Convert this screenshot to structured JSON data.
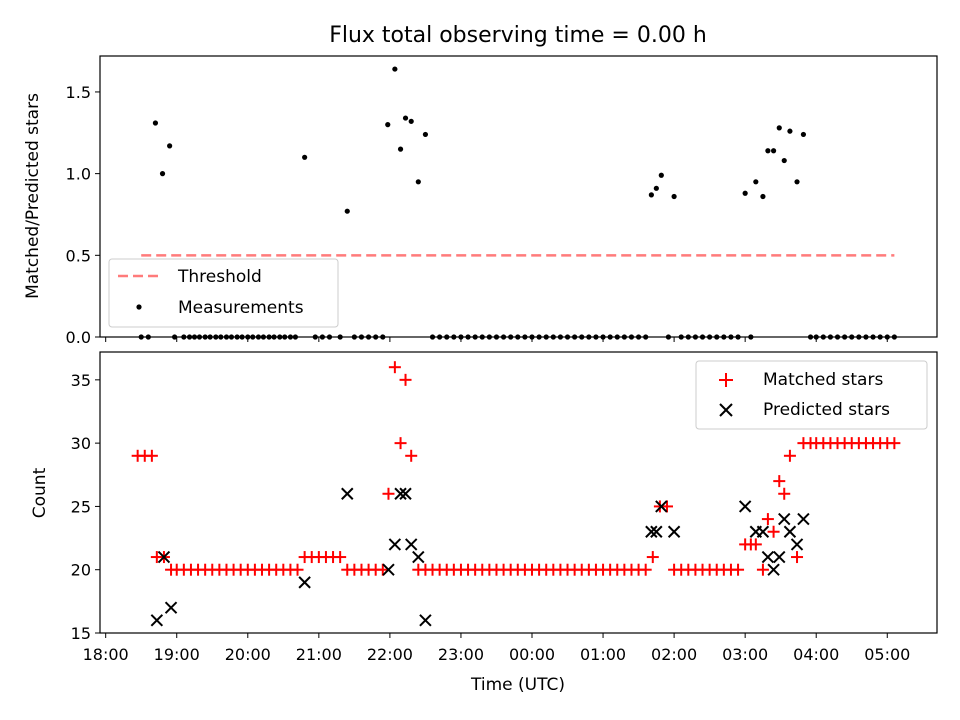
{
  "chart_data": [
    {
      "type": "scatter",
      "title": "Flux total observing time = 0.00 h",
      "xlabel": "",
      "ylabel": "Matched/Predicted stars",
      "xlim": [
        17.92,
        29.7
      ],
      "ylim": [
        0.0,
        1.72
      ],
      "yticks": [
        0.0,
        0.5,
        1.0,
        1.5
      ],
      "yticklabels": [
        "0.0",
        "0.5",
        "1.0",
        "1.5"
      ],
      "legend": "lower-left",
      "threshold": {
        "name": "Threshold",
        "value": 0.5,
        "x_start": 18.5,
        "x_end": 29.1,
        "color": "#ff7b7b"
      },
      "series": [
        {
          "name": "Measurements",
          "color": "#000000",
          "points": [
            [
              18.5,
              0
            ],
            [
              18.6,
              0
            ],
            [
              18.7,
              1.31
            ],
            [
              18.8,
              1.0
            ],
            [
              18.9,
              1.17
            ],
            [
              18.97,
              0
            ],
            [
              19.1,
              0
            ],
            [
              19.18,
              0
            ],
            [
              19.25,
              0
            ],
            [
              19.32,
              0
            ],
            [
              19.4,
              0
            ],
            [
              19.47,
              0
            ],
            [
              19.55,
              0
            ],
            [
              19.62,
              0
            ],
            [
              19.7,
              0
            ],
            [
              19.77,
              0
            ],
            [
              19.85,
              0
            ],
            [
              19.92,
              0
            ],
            [
              20.0,
              0
            ],
            [
              20.07,
              0
            ],
            [
              20.15,
              0
            ],
            [
              20.22,
              0
            ],
            [
              20.3,
              0
            ],
            [
              20.37,
              0
            ],
            [
              20.45,
              0
            ],
            [
              20.52,
              0
            ],
            [
              20.6,
              0
            ],
            [
              20.67,
              0
            ],
            [
              20.8,
              1.1
            ],
            [
              20.95,
              0
            ],
            [
              21.05,
              0
            ],
            [
              21.15,
              0
            ],
            [
              21.3,
              0
            ],
            [
              21.4,
              0.77
            ],
            [
              21.5,
              0
            ],
            [
              21.6,
              0
            ],
            [
              21.7,
              0
            ],
            [
              21.8,
              0
            ],
            [
              21.9,
              0
            ],
            [
              21.97,
              1.3
            ],
            [
              22.07,
              1.64
            ],
            [
              22.15,
              1.15
            ],
            [
              22.22,
              1.34
            ],
            [
              22.3,
              1.32
            ],
            [
              22.4,
              0.95
            ],
            [
              22.5,
              1.24
            ],
            [
              22.6,
              0
            ],
            [
              22.7,
              0
            ],
            [
              22.8,
              0
            ],
            [
              22.9,
              0
            ],
            [
              23.0,
              0
            ],
            [
              23.1,
              0
            ],
            [
              23.2,
              0
            ],
            [
              23.3,
              0
            ],
            [
              23.4,
              0
            ],
            [
              23.5,
              0
            ],
            [
              23.6,
              0
            ],
            [
              23.7,
              0
            ],
            [
              23.8,
              0
            ],
            [
              23.9,
              0
            ],
            [
              24.0,
              0
            ],
            [
              24.1,
              0
            ],
            [
              24.2,
              0
            ],
            [
              24.3,
              0
            ],
            [
              24.4,
              0
            ],
            [
              24.5,
              0
            ],
            [
              24.6,
              0
            ],
            [
              24.7,
              0
            ],
            [
              24.8,
              0
            ],
            [
              24.9,
              0
            ],
            [
              25.0,
              0
            ],
            [
              25.1,
              0
            ],
            [
              25.2,
              0
            ],
            [
              25.3,
              0
            ],
            [
              25.4,
              0
            ],
            [
              25.5,
              0
            ],
            [
              25.6,
              0
            ],
            [
              25.68,
              0.87
            ],
            [
              25.75,
              0.91
            ],
            [
              25.82,
              0.99
            ],
            [
              25.92,
              0
            ],
            [
              26.0,
              0.86
            ],
            [
              26.1,
              0
            ],
            [
              26.2,
              0
            ],
            [
              26.3,
              0
            ],
            [
              26.4,
              0
            ],
            [
              26.5,
              0
            ],
            [
              26.6,
              0
            ],
            [
              26.7,
              0
            ],
            [
              26.8,
              0
            ],
            [
              26.9,
              0
            ],
            [
              27.0,
              0.88
            ],
            [
              27.08,
              0
            ],
            [
              27.15,
              0.95
            ],
            [
              27.25,
              0.86
            ],
            [
              27.32,
              1.14
            ],
            [
              27.4,
              1.14
            ],
            [
              27.48,
              1.28
            ],
            [
              27.55,
              1.08
            ],
            [
              27.63,
              1.26
            ],
            [
              27.73,
              0.95
            ],
            [
              27.82,
              1.24
            ],
            [
              27.92,
              0
            ],
            [
              28.0,
              0
            ],
            [
              28.1,
              0
            ],
            [
              28.2,
              0
            ],
            [
              28.3,
              0
            ],
            [
              28.4,
              0
            ],
            [
              28.5,
              0
            ],
            [
              28.6,
              0
            ],
            [
              28.7,
              0
            ],
            [
              28.8,
              0
            ],
            [
              28.9,
              0
            ],
            [
              29.0,
              0
            ],
            [
              29.1,
              0
            ]
          ]
        }
      ]
    },
    {
      "type": "scatter",
      "title": "",
      "xlabel": "Time (UTC)",
      "ylabel": "Count",
      "xlim": [
        17.92,
        29.7
      ],
      "ylim": [
        15,
        37.2
      ],
      "yticks": [
        15,
        20,
        25,
        30,
        35
      ],
      "yticklabels": [
        "15",
        "20",
        "25",
        "30",
        "35"
      ],
      "xticks": [
        18,
        19,
        20,
        21,
        22,
        23,
        24,
        25,
        26,
        27,
        28,
        29
      ],
      "xticklabels": [
        "18:00",
        "19:00",
        "20:00",
        "21:00",
        "22:00",
        "23:00",
        "00:00",
        "01:00",
        "02:00",
        "03:00",
        "04:00",
        "05:00"
      ],
      "legend": "top-right",
      "series": [
        {
          "name": "Matched stars",
          "marker": "+",
          "color": "#ff0000",
          "points": [
            [
              18.45,
              29
            ],
            [
              18.55,
              29
            ],
            [
              18.65,
              29
            ],
            [
              18.72,
              21
            ],
            [
              18.82,
              21
            ],
            [
              18.92,
              20
            ],
            [
              19.0,
              20
            ],
            [
              19.1,
              20
            ],
            [
              19.2,
              20
            ],
            [
              19.3,
              20
            ],
            [
              19.4,
              20
            ],
            [
              19.5,
              20
            ],
            [
              19.6,
              20
            ],
            [
              19.7,
              20
            ],
            [
              19.8,
              20
            ],
            [
              19.9,
              20
            ],
            [
              20.0,
              20
            ],
            [
              20.1,
              20
            ],
            [
              20.2,
              20
            ],
            [
              20.3,
              20
            ],
            [
              20.4,
              20
            ],
            [
              20.5,
              20
            ],
            [
              20.6,
              20
            ],
            [
              20.7,
              20
            ],
            [
              20.8,
              21
            ],
            [
              20.9,
              21
            ],
            [
              21.0,
              21
            ],
            [
              21.1,
              21
            ],
            [
              21.2,
              21
            ],
            [
              21.3,
              21
            ],
            [
              21.4,
              20
            ],
            [
              21.5,
              20
            ],
            [
              21.6,
              20
            ],
            [
              21.7,
              20
            ],
            [
              21.8,
              20
            ],
            [
              21.9,
              20
            ],
            [
              21.98,
              26
            ],
            [
              22.07,
              36
            ],
            [
              22.15,
              30
            ],
            [
              22.22,
              35
            ],
            [
              22.3,
              29
            ],
            [
              22.4,
              20
            ],
            [
              22.5,
              20
            ],
            [
              22.6,
              20
            ],
            [
              22.7,
              20
            ],
            [
              22.8,
              20
            ],
            [
              22.9,
              20
            ],
            [
              23.0,
              20
            ],
            [
              23.1,
              20
            ],
            [
              23.2,
              20
            ],
            [
              23.3,
              20
            ],
            [
              23.4,
              20
            ],
            [
              23.5,
              20
            ],
            [
              23.6,
              20
            ],
            [
              23.7,
              20
            ],
            [
              23.8,
              20
            ],
            [
              23.9,
              20
            ],
            [
              24.0,
              20
            ],
            [
              24.1,
              20
            ],
            [
              24.2,
              20
            ],
            [
              24.3,
              20
            ],
            [
              24.4,
              20
            ],
            [
              24.5,
              20
            ],
            [
              24.6,
              20
            ],
            [
              24.7,
              20
            ],
            [
              24.8,
              20
            ],
            [
              24.9,
              20
            ],
            [
              25.0,
              20
            ],
            [
              25.1,
              20
            ],
            [
              25.2,
              20
            ],
            [
              25.3,
              20
            ],
            [
              25.4,
              20
            ],
            [
              25.5,
              20
            ],
            [
              25.6,
              20
            ],
            [
              25.7,
              21
            ],
            [
              25.8,
              25
            ],
            [
              25.9,
              25
            ],
            [
              26.0,
              20
            ],
            [
              26.1,
              20
            ],
            [
              26.2,
              20
            ],
            [
              26.3,
              20
            ],
            [
              26.4,
              20
            ],
            [
              26.5,
              20
            ],
            [
              26.6,
              20
            ],
            [
              26.7,
              20
            ],
            [
              26.8,
              20
            ],
            [
              26.9,
              20
            ],
            [
              27.0,
              22
            ],
            [
              27.08,
              22
            ],
            [
              27.15,
              22
            ],
            [
              27.25,
              20
            ],
            [
              27.32,
              24
            ],
            [
              27.4,
              23
            ],
            [
              27.48,
              27
            ],
            [
              27.55,
              26
            ],
            [
              27.63,
              29
            ],
            [
              27.73,
              21
            ],
            [
              27.82,
              30
            ],
            [
              27.92,
              30
            ],
            [
              28.0,
              30
            ],
            [
              28.1,
              30
            ],
            [
              28.2,
              30
            ],
            [
              28.3,
              30
            ],
            [
              28.4,
              30
            ],
            [
              28.5,
              30
            ],
            [
              28.6,
              30
            ],
            [
              28.7,
              30
            ],
            [
              28.8,
              30
            ],
            [
              28.9,
              30
            ],
            [
              29.0,
              30
            ],
            [
              29.1,
              30
            ]
          ]
        },
        {
          "name": "Predicted stars",
          "marker": "x",
          "color": "#000000",
          "points": [
            [
              18.72,
              16
            ],
            [
              18.82,
              21
            ],
            [
              18.92,
              17
            ],
            [
              20.8,
              19
            ],
            [
              21.4,
              26
            ],
            [
              21.98,
              20
            ],
            [
              22.07,
              22
            ],
            [
              22.15,
              26
            ],
            [
              22.22,
              26
            ],
            [
              22.3,
              22
            ],
            [
              22.4,
              21
            ],
            [
              22.5,
              16
            ],
            [
              25.68,
              23
            ],
            [
              25.75,
              23
            ],
            [
              25.82,
              25
            ],
            [
              26.0,
              23
            ],
            [
              27.0,
              25
            ],
            [
              27.15,
              23
            ],
            [
              27.25,
              23
            ],
            [
              27.32,
              21
            ],
            [
              27.4,
              20
            ],
            [
              27.48,
              21
            ],
            [
              27.55,
              24
            ],
            [
              27.63,
              23
            ],
            [
              27.73,
              22
            ],
            [
              27.82,
              24
            ]
          ]
        }
      ]
    }
  ]
}
